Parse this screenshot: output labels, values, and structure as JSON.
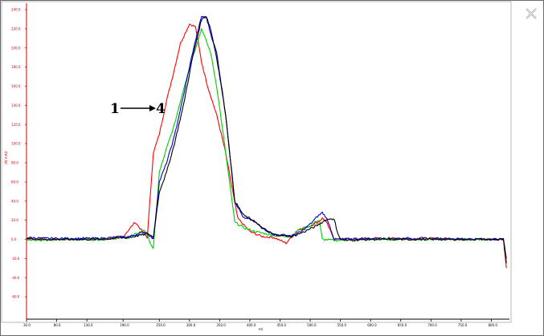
{
  "window": {
    "close_icon": "close-x-icon"
  },
  "chart_data": {
    "type": "line",
    "title": "",
    "xlabel": "ml",
    "ylabel": "UV mAU",
    "xlim": [
      30,
      830
    ],
    "ylim": [
      -80,
      240
    ],
    "x_ticks": [
      "30.0",
      "80.0",
      "130.0",
      "190.0",
      "250.0",
      "300.0",
      "350.0",
      "400.0",
      "450.0",
      "500.0",
      "550.0",
      "600.0",
      "650.0",
      "700.0",
      "750.0",
      "800.0"
    ],
    "y_ticks": [
      "-60.0",
      "-40.0",
      "-20.0",
      "0.0",
      "20.0",
      "40.0",
      "60.0",
      "80.0",
      "100.0",
      "120.0",
      "140.0",
      "160.0",
      "180.0",
      "200.0",
      "220.0",
      "240.0"
    ],
    "annotation": {
      "start": "1",
      "end": "4"
    },
    "grid": false,
    "legend": "none",
    "series": [
      {
        "color": "#ff0000",
        "x": [
          30,
          60,
          100,
          150,
          190,
          210,
          230,
          240,
          250,
          262,
          272,
          285,
          300,
          310,
          320,
          330,
          345,
          360,
          380,
          400,
          420,
          440,
          460,
          480,
          500,
          515,
          520,
          525,
          540,
          600,
          680,
          820,
          825
        ],
        "y": [
          1,
          0,
          0,
          0,
          3,
          18,
          2,
          90,
          110,
          145,
          170,
          205,
          225,
          222,
          185,
          160,
          130,
          90,
          22,
          8,
          3,
          2,
          -4,
          10,
          14,
          19,
          22,
          20,
          0,
          1,
          1,
          0,
          -30
        ]
      },
      {
        "color": "#00cc00",
        "x": [
          30,
          60,
          100,
          150,
          200,
          225,
          240,
          250,
          262,
          275,
          285,
          300,
          320,
          335,
          345,
          360,
          375,
          390,
          410,
          440,
          470,
          480,
          500,
          510,
          515,
          520,
          540,
          600,
          680,
          820,
          825
        ],
        "y": [
          0,
          -1,
          0,
          0,
          2,
          10,
          -10,
          70,
          95,
          120,
          145,
          180,
          220,
          195,
          160,
          90,
          18,
          12,
          8,
          4,
          3,
          10,
          14,
          19,
          20,
          0,
          -1,
          0,
          0,
          0,
          -20
        ]
      },
      {
        "color": "#0000dd",
        "x": [
          30,
          60,
          100,
          150,
          200,
          228,
          240,
          250,
          262,
          275,
          290,
          305,
          320,
          328,
          335,
          345,
          360,
          375,
          390,
          405,
          420,
          440,
          470,
          485,
          500,
          512,
          520,
          525,
          530,
          540,
          600,
          680,
          820,
          825
        ],
        "y": [
          2,
          1,
          1,
          1,
          3,
          8,
          0,
          60,
          80,
          108,
          150,
          195,
          233,
          232,
          215,
          195,
          130,
          40,
          22,
          20,
          12,
          5,
          4,
          8,
          16,
          24,
          28,
          24,
          18,
          0,
          1,
          1,
          0,
          -20
        ]
      },
      {
        "color": "#000000",
        "x": [
          30,
          60,
          100,
          150,
          200,
          232,
          240,
          250,
          262,
          275,
          290,
          305,
          320,
          328,
          335,
          345,
          360,
          375,
          390,
          405,
          420,
          440,
          470,
          490,
          510,
          525,
          535,
          540,
          545,
          550,
          560,
          600,
          680,
          820,
          825
        ],
        "y": [
          1,
          0,
          0,
          0,
          2,
          6,
          2,
          50,
          70,
          100,
          140,
          190,
          230,
          233,
          220,
          190,
          130,
          40,
          25,
          20,
          12,
          5,
          3,
          8,
          14,
          20,
          22,
          20,
          8,
          0,
          -1,
          0,
          0,
          0,
          -25
        ]
      }
    ]
  }
}
